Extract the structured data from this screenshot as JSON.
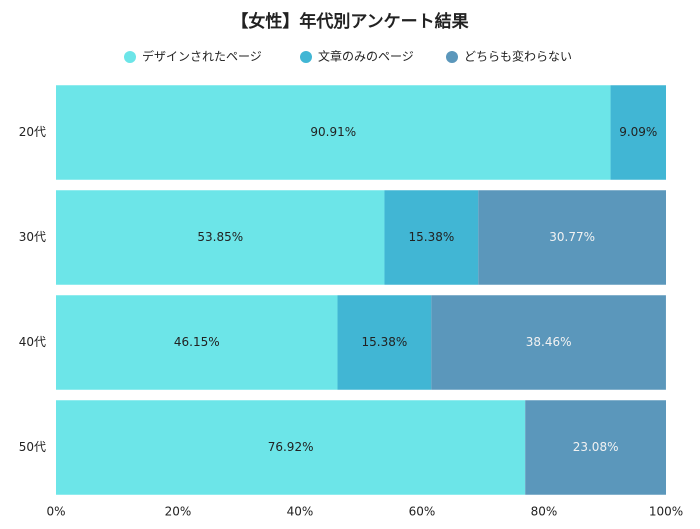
{
  "chart_data": {
    "type": "stacked-barh",
    "title": "【女性】年代別アンケート結果",
    "categories": [
      "20代",
      "30代",
      "40代",
      "50代"
    ],
    "series": [
      {
        "name": "デザインされたページ",
        "color": "#6ce5e8",
        "label_color": "#222222",
        "values": [
          90.91,
          53.85,
          46.15,
          76.92
        ],
        "value_labels": [
          "90.91%",
          "53.85%",
          "46.15%",
          "76.92%"
        ]
      },
      {
        "name": "文章のみのページ",
        "color": "#41b6d4",
        "label_color": "#222222",
        "values": [
          9.09,
          15.38,
          15.38,
          null
        ],
        "value_labels": [
          "9.09%",
          "15.38%",
          "15.38%",
          null
        ]
      },
      {
        "name": "どちらも変わらない",
        "color": "#5b97bb",
        "label_color": "#f2f2f2",
        "values": [
          null,
          30.77,
          38.46,
          23.08
        ],
        "value_labels": [
          null,
          "30.77%",
          "38.46%",
          "23.08%"
        ]
      }
    ],
    "xlim": [
      0,
      100
    ],
    "xticks": [
      {
        "value": 0,
        "label": "0%"
      },
      {
        "value": 20,
        "label": "20%"
      },
      {
        "value": 40,
        "label": "40%"
      },
      {
        "value": 60,
        "label": "60%"
      },
      {
        "value": 80,
        "label": "80%"
      },
      {
        "value": 100,
        "label": "100%"
      }
    ],
    "legend": "top"
  }
}
